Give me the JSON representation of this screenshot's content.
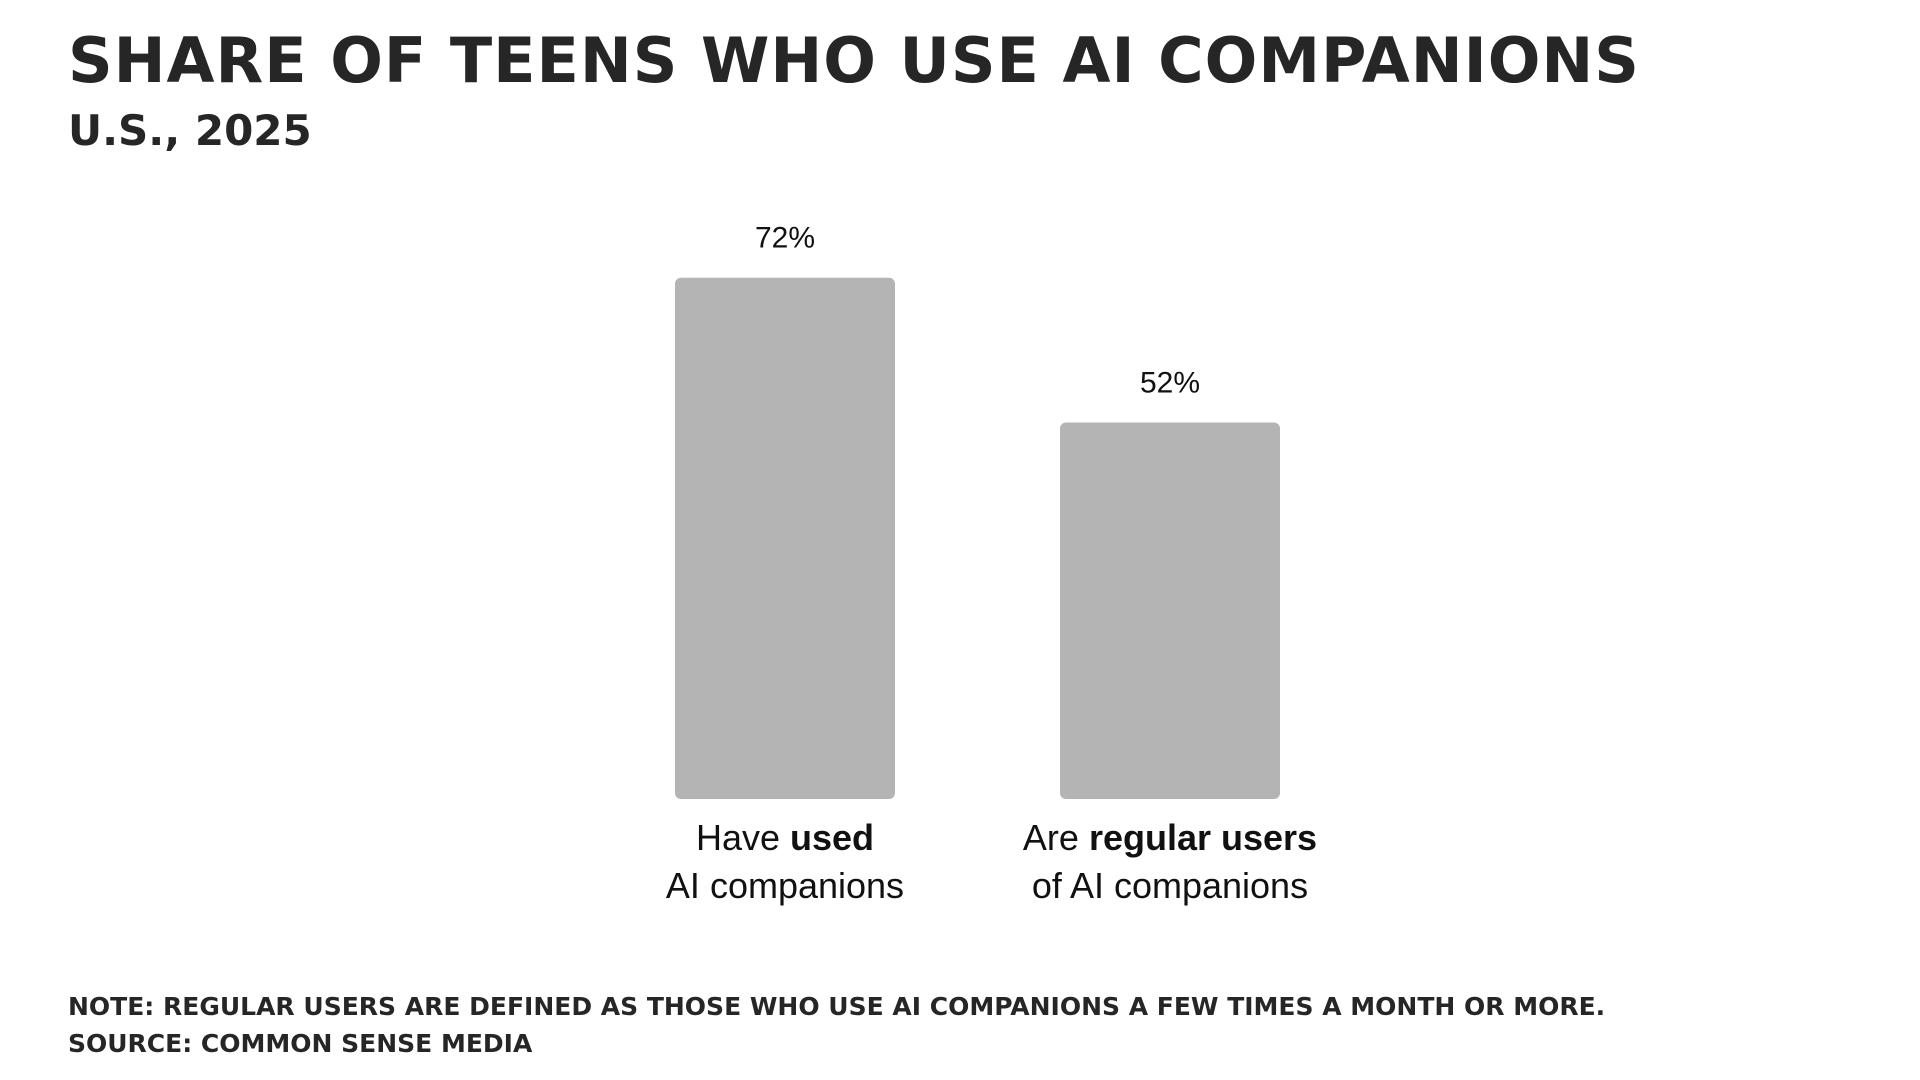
{
  "title": "Share of teens who use AI companions",
  "subtitle": "U.S., 2025",
  "note": "Note: Regular users are defined as those who use AI companions a few times a month or more.",
  "source": "Source: Common Sense Media",
  "colors": {
    "bar": "#b5b4b5",
    "text": "#262626",
    "label": "#111111"
  },
  "chart_data": {
    "type": "bar",
    "categories": [
      {
        "line1_pre": "Have ",
        "line1_bold": "used",
        "line2": "AI companions"
      },
      {
        "line1_pre": "Are ",
        "line1_bold": "regular users",
        "line2": "of AI companions"
      }
    ],
    "values": [
      72,
      52
    ],
    "value_labels": [
      "72%",
      "52%"
    ],
    "ylim": [
      0,
      100
    ],
    "grid": false,
    "legend": "none"
  }
}
